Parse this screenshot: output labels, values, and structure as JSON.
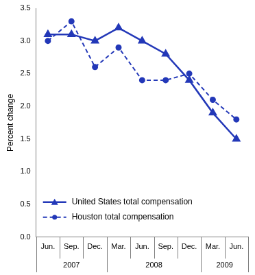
{
  "chart_data": {
    "type": "line",
    "y_label": "Percent change",
    "categories": [
      "Jun.",
      "Sep.",
      "Dec.",
      "Mar.",
      "Jun.",
      "Sep.",
      "Dec.",
      "Mar.",
      "Jun."
    ],
    "category_groups": [
      {
        "label": "2007",
        "count": 3
      },
      {
        "label": "2008",
        "count": 4
      },
      {
        "label": "2009",
        "count": 2
      }
    ],
    "series": [
      {
        "name": "United States total compensation",
        "color": "#2338b8",
        "marker": "triangle",
        "line_style": "solid",
        "values": [
          3.1,
          3.1,
          3.0,
          3.2,
          3.0,
          2.8,
          2.4,
          1.9,
          1.5
        ]
      },
      {
        "name": "Houston total compensation",
        "color": "#2338b8",
        "marker": "circle",
        "line_style": "dashed",
        "values": [
          3.0,
          3.3,
          2.6,
          2.9,
          2.4,
          2.4,
          2.5,
          2.1,
          1.8
        ]
      }
    ],
    "ylim": [
      0,
      3.5
    ],
    "yticks": [
      {
        "value": 0,
        "label": "0.0"
      },
      0.5,
      {
        "value": 1,
        "label": "1.0"
      },
      1.5,
      {
        "value": 2,
        "label": "2.0"
      },
      2.5,
      {
        "value": 3,
        "label": "3.0"
      },
      3.5
    ],
    "grid": false,
    "legend": "lower left"
  }
}
